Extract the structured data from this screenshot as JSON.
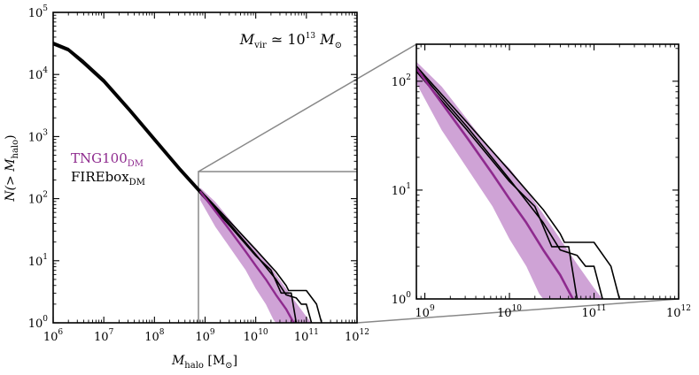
{
  "chart_data": [
    {
      "type": "line",
      "panel": "main",
      "title": "",
      "annotation": {
        "prefix": "M",
        "prefix_sub": "vir",
        "relation": " ≃ 10",
        "exp": "13",
        "unit": " M",
        "unit_sub": "⊙"
      },
      "xlabel": {
        "text": "M",
        "sub": "halo",
        "unit": " [M",
        "unit_sub": "⊙",
        "close": "]"
      },
      "ylabel": {
        "text": "N(> M",
        "sub": "halo",
        "close": ")"
      },
      "xscale": "log",
      "yscale": "log",
      "xlim_exp": [
        6,
        12
      ],
      "ylim_exp": [
        0,
        5
      ],
      "x_ticks": [
        {
          "exp": 6,
          "base": "10",
          "sup": "6"
        },
        {
          "exp": 7,
          "base": "10",
          "sup": "7"
        },
        {
          "exp": 8,
          "base": "10",
          "sup": "8"
        },
        {
          "exp": 9,
          "base": "10",
          "sup": "9"
        },
        {
          "exp": 10,
          "base": "10",
          "sup": "10"
        },
        {
          "exp": 11,
          "base": "10",
          "sup": "11"
        },
        {
          "exp": 12,
          "base": "10",
          "sup": "12"
        }
      ],
      "y_ticks": [
        {
          "exp": 0,
          "base": "10",
          "sup": "0"
        },
        {
          "exp": 1,
          "base": "10",
          "sup": "1"
        },
        {
          "exp": 2,
          "base": "10",
          "sup": "2"
        },
        {
          "exp": 3,
          "base": "10",
          "sup": "3"
        },
        {
          "exp": 4,
          "base": "10",
          "sup": "4"
        },
        {
          "exp": 5,
          "base": "10",
          "sup": "5"
        }
      ],
      "legend": [
        {
          "name": "TNG100",
          "sub": "DM",
          "color": "#8e2a8e"
        },
        {
          "name": "FIREbox",
          "sub": "DM",
          "color": "#000000"
        }
      ],
      "series": [
        {
          "name": "FIREbox run 1",
          "color": "#000000",
          "log_points": [
            [
              6.0,
              4.52
            ],
            [
              6.3,
              4.42
            ],
            [
              6.6,
              4.22
            ],
            [
              7.0,
              3.92
            ],
            [
              7.5,
              3.46
            ],
            [
              8.0,
              2.98
            ],
            [
              8.5,
              2.5
            ],
            [
              9.0,
              2.05
            ],
            [
              9.5,
              1.62
            ],
            [
              10.0,
              1.18
            ],
            [
              10.4,
              0.82
            ],
            [
              10.6,
              0.6
            ],
            [
              10.65,
              0.52
            ],
            [
              11.0,
              0.52
            ],
            [
              11.2,
              0.3
            ],
            [
              11.3,
              0.0
            ]
          ]
        },
        {
          "name": "FIREbox run 2",
          "color": "#000000",
          "log_points": [
            [
              6.0,
              4.5
            ],
            [
              6.3,
              4.4
            ],
            [
              6.6,
              4.19
            ],
            [
              7.0,
              3.89
            ],
            [
              7.5,
              3.43
            ],
            [
              8.0,
              2.95
            ],
            [
              8.5,
              2.47
            ],
            [
              9.0,
              2.03
            ],
            [
              9.5,
              1.58
            ],
            [
              10.0,
              1.1
            ],
            [
              10.4,
              0.7
            ],
            [
              10.6,
              0.45
            ],
            [
              10.8,
              0.4
            ],
            [
              10.9,
              0.3
            ],
            [
              11.0,
              0.3
            ],
            [
              11.1,
              0.0
            ]
          ]
        },
        {
          "name": "FIREbox run 3",
          "color": "#000000",
          "log_points": [
            [
              6.0,
              4.48
            ],
            [
              6.3,
              4.38
            ],
            [
              6.6,
              4.17
            ],
            [
              7.0,
              3.87
            ],
            [
              7.5,
              3.41
            ],
            [
              8.0,
              2.93
            ],
            [
              8.5,
              2.45
            ],
            [
              9.0,
              2.0
            ],
            [
              9.5,
              1.55
            ],
            [
              10.0,
              1.08
            ],
            [
              10.3,
              0.85
            ],
            [
              10.5,
              0.48
            ],
            [
              10.7,
              0.48
            ],
            [
              10.8,
              0.0
            ]
          ]
        },
        {
          "name": "TNG100 median",
          "color": "#8e2a8e",
          "log_points": [
            [
              8.9,
              2.12
            ],
            [
              9.2,
              1.8
            ],
            [
              9.5,
              1.48
            ],
            [
              9.8,
              1.15
            ],
            [
              10.0,
              0.92
            ],
            [
              10.2,
              0.7
            ],
            [
              10.4,
              0.45
            ],
            [
              10.6,
              0.22
            ],
            [
              10.75,
              0.0
            ]
          ]
        }
      ],
      "band": {
        "name": "TNG100 scatter",
        "color": "#cfa3d6",
        "log_upper": [
          [
            8.9,
            2.18
          ],
          [
            9.2,
            1.95
          ],
          [
            9.5,
            1.65
          ],
          [
            9.8,
            1.35
          ],
          [
            10.0,
            1.2
          ],
          [
            10.2,
            1.0
          ],
          [
            10.4,
            0.78
          ],
          [
            10.6,
            0.55
          ],
          [
            10.8,
            0.32
          ],
          [
            11.0,
            0.1
          ],
          [
            11.1,
            0.0
          ]
        ],
        "log_lower": [
          [
            8.9,
            1.98
          ],
          [
            9.2,
            1.55
          ],
          [
            9.5,
            1.2
          ],
          [
            9.8,
            0.85
          ],
          [
            10.0,
            0.55
          ],
          [
            10.2,
            0.3
          ],
          [
            10.35,
            0.05
          ],
          [
            10.4,
            0.0
          ]
        ]
      }
    },
    {
      "type": "line",
      "panel": "zoom-inset",
      "xscale": "log",
      "yscale": "log",
      "xlim_exp": [
        8.9,
        12
      ],
      "ylim_exp": [
        0,
        2.34
      ],
      "x_ticks": [
        {
          "exp": 9,
          "base": "10",
          "sup": "9"
        },
        {
          "exp": 10,
          "base": "10",
          "sup": "10"
        },
        {
          "exp": 11,
          "base": "10",
          "sup": "11"
        },
        {
          "exp": 12,
          "base": "10",
          "sup": "12"
        }
      ],
      "y_ticks": [
        {
          "exp": 0,
          "base": "10",
          "sup": "0"
        },
        {
          "exp": 1,
          "base": "10",
          "sup": "1"
        },
        {
          "exp": 2,
          "base": "10",
          "sup": "2"
        }
      ]
    }
  ]
}
